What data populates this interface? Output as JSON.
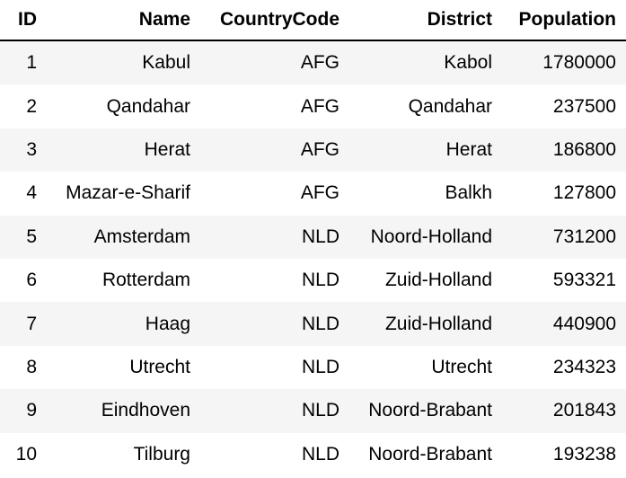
{
  "table": {
    "columns": [
      "ID",
      "Name",
      "CountryCode",
      "District",
      "Population"
    ],
    "rows": [
      [
        "1",
        "Kabul",
        "AFG",
        "Kabol",
        "1780000"
      ],
      [
        "2",
        "Qandahar",
        "AFG",
        "Qandahar",
        "237500"
      ],
      [
        "3",
        "Herat",
        "AFG",
        "Herat",
        "186800"
      ],
      [
        "4",
        "Mazar-e-Sharif",
        "AFG",
        "Balkh",
        "127800"
      ],
      [
        "5",
        "Amsterdam",
        "NLD",
        "Noord-Holland",
        "731200"
      ],
      [
        "6",
        "Rotterdam",
        "NLD",
        "Zuid-Holland",
        "593321"
      ],
      [
        "7",
        "Haag",
        "NLD",
        "Zuid-Holland",
        "440900"
      ],
      [
        "8",
        "Utrecht",
        "NLD",
        "Utrecht",
        "234323"
      ],
      [
        "9",
        "Eindhoven",
        "NLD",
        "Noord-Brabant",
        "201843"
      ],
      [
        "10",
        "Tilburg",
        "NLD",
        "Noord-Brabant",
        "193238"
      ]
    ]
  }
}
